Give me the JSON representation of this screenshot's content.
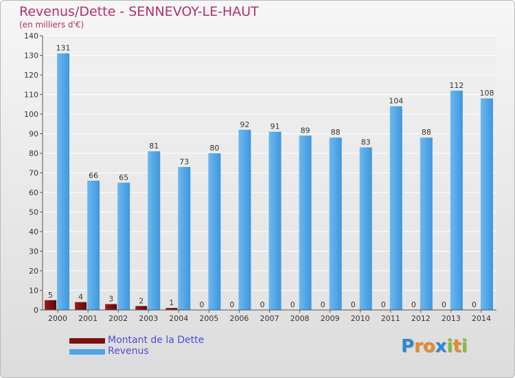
{
  "header": {
    "title": "Revenus/Dette - SENNEVOY-LE-HAUT",
    "subtitle": "(en milliers d'€)"
  },
  "legend": {
    "items": [
      {
        "label": "Montant de la Dette",
        "color": "#7a1010"
      },
      {
        "label": "Revenus",
        "color": "#4da6e8"
      }
    ]
  },
  "logo": {
    "text": "Proxiti",
    "letters": [
      {
        "ch": "P",
        "color": "#2e86d6"
      },
      {
        "ch": "r",
        "color": "#e8892a"
      },
      {
        "ch": "o",
        "color": "#e8892a"
      },
      {
        "ch": "x",
        "color": "#2e86d6"
      },
      {
        "ch": "i",
        "color": "#7fbf3a"
      },
      {
        "ch": "t",
        "color": "#e8892a"
      },
      {
        "ch": "i",
        "color": "#7fbf3a"
      }
    ]
  },
  "chart_data": {
    "type": "bar",
    "title": "Revenus/Dette - SENNEVOY-LE-HAUT",
    "subtitle": "(en milliers d'€)",
    "categories": [
      "2000",
      "2001",
      "2002",
      "2003",
      "2004",
      "2005",
      "2006",
      "2007",
      "2008",
      "2009",
      "2010",
      "2011",
      "2012",
      "2013",
      "2014"
    ],
    "series": [
      {
        "name": "Montant de la Dette",
        "color": "#7a1010",
        "values": [
          5,
          4,
          3,
          2,
          1,
          0,
          0,
          0,
          0,
          0,
          0,
          0,
          0,
          0,
          0
        ]
      },
      {
        "name": "Revenus",
        "color": "#4da6e8",
        "values": [
          131,
          66,
          65,
          81,
          73,
          80,
          92,
          91,
          89,
          88,
          83,
          104,
          88,
          112,
          108
        ]
      }
    ],
    "ylim": [
      0,
      140
    ],
    "yticks": [
      0,
      10,
      20,
      30,
      40,
      50,
      60,
      70,
      80,
      90,
      100,
      110,
      120,
      130,
      140
    ],
    "grid": true,
    "legend_position": "bottom-left"
  }
}
